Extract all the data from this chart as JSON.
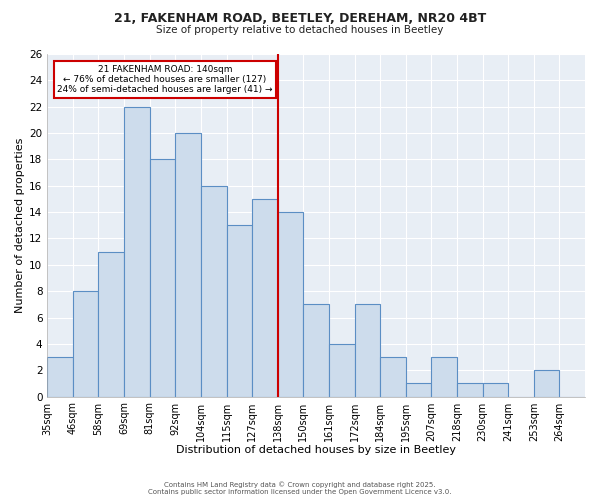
{
  "title_line1": "21, FAKENHAM ROAD, BEETLEY, DEREHAM, NR20 4BT",
  "title_line2": "Size of property relative to detached houses in Beetley",
  "xlabel": "Distribution of detached houses by size in Beetley",
  "ylabel": "Number of detached properties",
  "bin_labels": [
    "35sqm",
    "46sqm",
    "58sqm",
    "69sqm",
    "81sqm",
    "92sqm",
    "104sqm",
    "115sqm",
    "127sqm",
    "138sqm",
    "150sqm",
    "161sqm",
    "172sqm",
    "184sqm",
    "195sqm",
    "207sqm",
    "218sqm",
    "230sqm",
    "241sqm",
    "253sqm",
    "264sqm"
  ],
  "counts": [
    3,
    8,
    11,
    22,
    18,
    20,
    16,
    13,
    15,
    14,
    7,
    4,
    7,
    3,
    1,
    3,
    1,
    1,
    0,
    2,
    0
  ],
  "bar_color": "#cddcec",
  "bar_edge_color": "#5b8ec4",
  "vline_color": "#cc0000",
  "annotation_title": "21 FAKENHAM ROAD: 140sqm",
  "annotation_line2": "← 76% of detached houses are smaller (127)",
  "annotation_line3": "24% of semi-detached houses are larger (41) →",
  "annotation_box_color": "#ffffff",
  "annotation_box_edge": "#cc0000",
  "ylim": [
    0,
    26
  ],
  "yticks": [
    0,
    2,
    4,
    6,
    8,
    10,
    12,
    14,
    16,
    18,
    20,
    22,
    24,
    26
  ],
  "footnote1": "Contains HM Land Registry data © Crown copyright and database right 2025.",
  "footnote2": "Contains public sector information licensed under the Open Government Licence v3.0.",
  "plot_bg_color": "#e8eef5",
  "fig_bg_color": "#ffffff",
  "grid_color": "#ffffff"
}
